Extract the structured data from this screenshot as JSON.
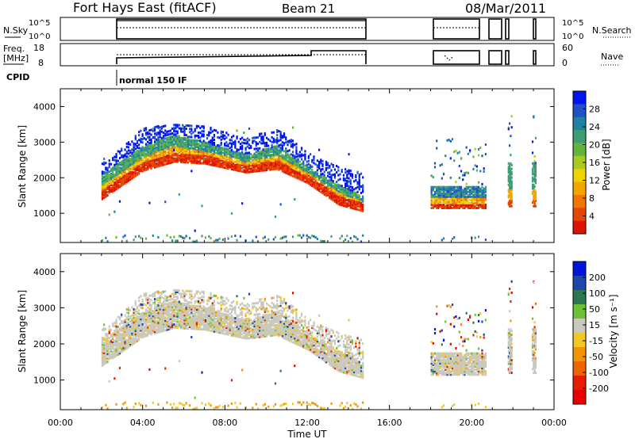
{
  "header": {
    "title": "Fort Hays East (fitACF)",
    "beam": "Beam 21",
    "date": "08/Mar/2011"
  },
  "status_panel": {
    "nsky_label": "N.Sky",
    "left_ticks": [
      "10^5",
      "10^0"
    ],
    "right_ticks": [
      "10^5",
      "10^0"
    ],
    "right_label": "N.Search"
  },
  "freq_panel": {
    "label_line1": "Freq.",
    "label_line2": "[MHz]",
    "left_ticks": [
      "18",
      "8"
    ],
    "right_ticks": [
      "60",
      "0"
    ],
    "right_label": "Nave"
  },
  "cpid": {
    "label": "CPID",
    "program": "normal 150 IF"
  },
  "colors": {
    "power": [
      "#0014f0",
      "#1e50c8",
      "#1e82a0",
      "#3c9e72",
      "#64b43c",
      "#aac81e",
      "#f0d200",
      "#f5a500",
      "#f07800",
      "#e64600",
      "#dc1400"
    ],
    "velocity": [
      "#0014dc",
      "#1e46aa",
      "#2d7850",
      "#6cc232",
      "#c8c8be",
      "#f0c828",
      "#f09600",
      "#f06400",
      "#e61e00",
      "#e60000"
    ]
  },
  "chart_data": [
    {
      "type": "heatmap",
      "name": "power",
      "ylabel": "Slant Range [km]",
      "xlabel": "",
      "ylim": [
        180,
        4500
      ],
      "yticks": [
        1000,
        2000,
        3000,
        4000
      ],
      "colorbar": {
        "label": "Power [dB]",
        "ticks": [
          "28",
          "24",
          "20",
          "16",
          "12",
          "8",
          "4"
        ],
        "range": [
          0,
          30
        ]
      },
      "coverage": [
        {
          "start": "02:00",
          "end": "14:45"
        },
        {
          "start": "18:00",
          "end": "20:40"
        },
        {
          "start": "21:45",
          "end": "21:55"
        },
        {
          "start": "22:55",
          "end": "23:05"
        }
      ],
      "echo_band": [
        {
          "time": "02:00",
          "lower_km": 1550,
          "upper_km": 2100,
          "top_km": 2400
        },
        {
          "time": "04:00",
          "lower_km": 2350,
          "upper_km": 2900,
          "top_km": 3400
        },
        {
          "time": "05:30",
          "lower_km": 2600,
          "upper_km": 3200,
          "top_km": 3500
        },
        {
          "time": "07:00",
          "lower_km": 2550,
          "upper_km": 3000,
          "top_km": 3450
        },
        {
          "time": "09:00",
          "lower_km": 2300,
          "upper_km": 2650,
          "top_km": 3100
        },
        {
          "time": "10:30",
          "lower_km": 2400,
          "upper_km": 2900,
          "top_km": 3400
        },
        {
          "time": "12:00",
          "lower_km": 2000,
          "upper_km": 2300,
          "top_km": 2700
        },
        {
          "time": "13:30",
          "lower_km": 1400,
          "upper_km": 1800,
          "top_km": 2300
        },
        {
          "time": "14:45",
          "lower_km": 1200,
          "upper_km": 1450,
          "top_km": 2100
        }
      ]
    },
    {
      "type": "heatmap",
      "name": "velocity",
      "ylabel": "Slant Range [km]",
      "xlabel": "Time UT",
      "ylim": [
        180,
        4500
      ],
      "yticks": [
        1000,
        2000,
        3000,
        4000
      ],
      "x_ticks": [
        "00:00",
        "04:00",
        "08:00",
        "12:00",
        "16:00",
        "20:00",
        "00:00"
      ],
      "colorbar": {
        "label": "Velocity [m s⁻¹]",
        "ticks": [
          "200",
          "100",
          "50",
          "15",
          "-15",
          "-50",
          "-100",
          "-200"
        ],
        "range": [
          -250,
          250
        ]
      }
    }
  ]
}
